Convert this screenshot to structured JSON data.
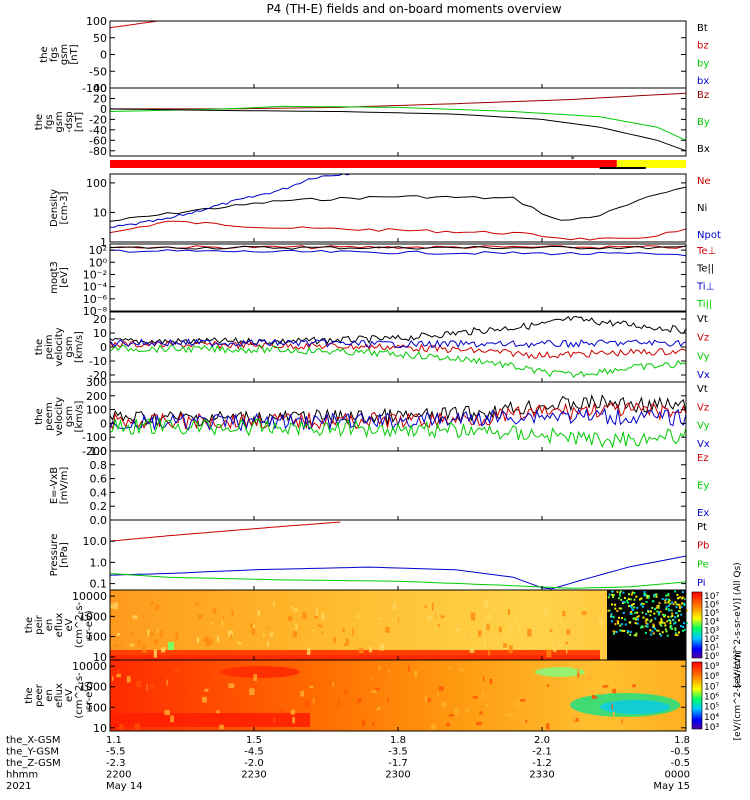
{
  "title": "P4 (TH-E) fields and on-board moments overview",
  "colors": {
    "black": "#000000",
    "red": "#cc0000",
    "green": "#00cc00",
    "blue": "#0000cc",
    "darkred": "#990000",
    "yellow": "#ffff00",
    "flag_red": "#ff0000"
  },
  "chart_data": [
    {
      "type": "line",
      "ylabel": [
        "the",
        "fgs",
        "gsm",
        "[nT]"
      ],
      "ylim": [
        -100,
        100
      ],
      "yscale": "linear",
      "yticks": [
        "100",
        "50",
        "0",
        "-50",
        "-100"
      ],
      "yticks_values": [
        100,
        50,
        0,
        -50,
        -100
      ],
      "legend": [
        {
          "label": "Bt",
          "color": "#000000"
        },
        {
          "label": "bz",
          "color": "#cc0000"
        },
        {
          "label": "by",
          "color": "#00cc00"
        },
        {
          "label": "bx",
          "color": "#0000cc"
        }
      ],
      "series": [
        {
          "color": "#cc0000",
          "x": [
            0,
            0.05,
            0.1
          ],
          "y": [
            80,
            92,
            104
          ]
        }
      ]
    },
    {
      "type": "line",
      "ylabel": [
        "the",
        "fgs",
        "gsm",
        "-dsp",
        "[nT]"
      ],
      "ylim": [
        -90,
        40
      ],
      "yscale": "linear",
      "yticks": [
        "40",
        "20",
        "0",
        "-20",
        "-40",
        "-60",
        "-80"
      ],
      "yticks_values": [
        40,
        20,
        0,
        -20,
        -40,
        -60,
        -80
      ],
      "legend": [
        {
          "label": "Bz",
          "color": "#990000"
        },
        {
          "label": "By",
          "color": "#00cc00"
        },
        {
          "label": "Bx",
          "color": "#000000"
        }
      ],
      "series": [
        {
          "color": "#990000",
          "x": [
            0,
            0.2,
            0.4,
            0.6,
            0.8,
            1.0
          ],
          "y": [
            0,
            0,
            3,
            10,
            18,
            30
          ]
        },
        {
          "color": "#00cc00",
          "x": [
            0,
            0.2,
            0.3,
            0.5,
            0.7,
            0.85,
            0.95,
            1.0
          ],
          "y": [
            -5,
            0,
            5,
            3,
            -5,
            -15,
            -35,
            -60
          ]
        },
        {
          "color": "#000000",
          "x": [
            0,
            0.2,
            0.4,
            0.6,
            0.75,
            0.85,
            0.95,
            1.0
          ],
          "y": [
            0,
            -3,
            -5,
            -10,
            -20,
            -35,
            -60,
            -80
          ]
        }
      ]
    },
    {
      "type": "flagbar",
      "segments": [
        {
          "from": 0,
          "to": 0.88,
          "color": "#ff0000"
        },
        {
          "from": 0.88,
          "to": 1.0,
          "color": "#ffff00"
        }
      ]
    },
    {
      "type": "line",
      "ylabel": [
        "Density",
        "[cm-3]"
      ],
      "ylim": [
        1,
        200
      ],
      "yscale": "log",
      "yticks": [
        "100",
        "10",
        "1"
      ],
      "yticks_values": [
        100,
        10,
        1
      ],
      "legend": [
        {
          "label": "Ne",
          "color": "#cc0000"
        },
        {
          "label": "Ni",
          "color": "#000000"
        },
        {
          "label": "Npot",
          "color": "#0000cc"
        }
      ],
      "series": [
        {
          "color": "#000000",
          "x": [
            0,
            0.15,
            0.3,
            0.5,
            0.7,
            0.78,
            0.85,
            0.95,
            1.0
          ],
          "y": [
            5,
            12,
            25,
            35,
            30,
            5,
            8,
            40,
            80
          ]
        },
        {
          "color": "#cc0000",
          "x": [
            0,
            0.1,
            0.3,
            0.5,
            0.7,
            0.8,
            0.9,
            1.0
          ],
          "y": [
            2,
            5,
            3,
            2.5,
            2,
            1.3,
            1.2,
            2.5
          ]
        },
        {
          "color": "#0000cc",
          "x": [
            0,
            0.1,
            0.2,
            0.3,
            0.35,
            0.4,
            0.45
          ],
          "y": [
            3,
            6,
            20,
            60,
            150,
            200,
            250
          ]
        }
      ]
    },
    {
      "type": "line",
      "ylabel": [
        "moqt3",
        "[eV]"
      ],
      "ylim": [
        1e-08,
        1000.0
      ],
      "yscale": "log",
      "yticks": [
        "10²",
        "10⁰",
        "10⁻²",
        "10⁻⁴",
        "10⁻⁶",
        "10⁻⁸"
      ],
      "yticks_values": [
        100,
        1,
        0.01,
        0.0001,
        1e-06,
        1e-08
      ],
      "legend": [
        {
          "label": "Te⊥",
          "color": "#cc0000"
        },
        {
          "label": "Te||",
          "color": "#000000"
        },
        {
          "label": "Ti⊥",
          "color": "#0000cc"
        },
        {
          "label": "Ti||",
          "color": "#00cc00"
        }
      ],
      "series": [
        {
          "color": "#cc0000",
          "x": [
            0,
            1.0
          ],
          "y": [
            300,
            300
          ]
        },
        {
          "color": "#000000",
          "x": [
            0,
            1.0
          ],
          "y": [
            250,
            250
          ]
        },
        {
          "color": "#0000cc",
          "x": [
            0,
            0.5,
            1.0
          ],
          "y": [
            80,
            40,
            20
          ]
        }
      ]
    },
    {
      "type": "line",
      "ylabel": [
        "the",
        "peim",
        "velocity",
        "gsm",
        "[km/s]"
      ],
      "ylim": [
        -25,
        25
      ],
      "yscale": "linear",
      "yticks": [
        "20",
        "10",
        "0",
        "-10",
        "-20"
      ],
      "yticks_values": [
        20,
        10,
        0,
        -10,
        -20
      ],
      "legend": [
        {
          "label": "Vt",
          "color": "#000000"
        },
        {
          "label": "Vz",
          "color": "#cc0000"
        },
        {
          "label": "Vy",
          "color": "#00cc00"
        },
        {
          "label": "Vx",
          "color": "#0000cc"
        }
      ],
      "series": [
        {
          "color": "#000000",
          "x": [
            0,
            0.3,
            0.5,
            0.65,
            0.75,
            0.8,
            0.9,
            1.0
          ],
          "y": [
            4,
            4,
            6,
            12,
            16,
            20,
            16,
            12
          ]
        },
        {
          "color": "#cc0000",
          "x": [
            0,
            0.3,
            0.5,
            0.65,
            0.75,
            0.9,
            1.0
          ],
          "y": [
            2,
            1,
            0,
            -3,
            -6,
            -4,
            -3
          ]
        },
        {
          "color": "#00cc00",
          "x": [
            0,
            0.3,
            0.5,
            0.65,
            0.75,
            0.8,
            0.9,
            1.0
          ],
          "y": [
            -1,
            -2,
            -5,
            -10,
            -18,
            -20,
            -15,
            -12
          ]
        },
        {
          "color": "#0000cc",
          "x": [
            0,
            0.3,
            0.5,
            0.65,
            0.75,
            0.9,
            1.0
          ],
          "y": [
            3,
            3,
            2,
            2,
            2,
            3,
            3
          ]
        }
      ]
    },
    {
      "type": "line",
      "ylabel": [
        "the",
        "peem",
        "velocity",
        "gsm",
        "[km/s]"
      ],
      "ylim": [
        -200,
        300
      ],
      "yscale": "linear",
      "yticks": [
        "300",
        "200",
        "100",
        "0",
        "-100",
        "-200"
      ],
      "yticks_values": [
        300,
        200,
        100,
        0,
        -100,
        -200
      ],
      "legend": [
        {
          "label": "Vt",
          "color": "#000000"
        },
        {
          "label": "Vz",
          "color": "#cc0000"
        },
        {
          "label": "Vy",
          "color": "#00cc00"
        },
        {
          "label": "Vx",
          "color": "#0000cc"
        }
      ],
      "series": [
        {
          "color": "#000000",
          "x": [
            0,
            0.3,
            0.55,
            0.65,
            0.75,
            0.85,
            1.0
          ],
          "y": [
            40,
            40,
            50,
            80,
            130,
            150,
            120
          ]
        },
        {
          "color": "#cc0000",
          "x": [
            0,
            0.3,
            0.55,
            0.65,
            0.75,
            0.85,
            1.0
          ],
          "y": [
            10,
            20,
            20,
            40,
            80,
            100,
            80
          ]
        },
        {
          "color": "#0000cc",
          "x": [
            0,
            0.3,
            0.55,
            0.65,
            0.75,
            0.85,
            1.0
          ],
          "y": [
            0,
            10,
            20,
            40,
            60,
            50,
            40
          ]
        },
        {
          "color": "#00cc00",
          "x": [
            0,
            0.3,
            0.55,
            0.65,
            0.75,
            0.85,
            1.0
          ],
          "y": [
            -20,
            -30,
            -40,
            -60,
            -80,
            -120,
            -90
          ]
        }
      ]
    },
    {
      "type": "line",
      "ylabel": [
        "E=-VxB",
        "[mV/m]"
      ],
      "ylim": [
        0,
        1
      ],
      "yscale": "linear",
      "yticks": [
        "1.0",
        "0.8",
        "0.6",
        "0.4",
        "0.2",
        "0.0"
      ],
      "yticks_values": [
        1.0,
        0.8,
        0.6,
        0.4,
        0.2,
        0.0
      ],
      "legend": [
        {
          "label": "Ez",
          "color": "#cc0000"
        },
        {
          "label": "Ey",
          "color": "#00cc00"
        },
        {
          "label": "Ex",
          "color": "#0000cc"
        }
      ],
      "series": []
    },
    {
      "type": "line",
      "ylabel": [
        "Pressure",
        "[nPa]"
      ],
      "ylim": [
        0.05,
        100
      ],
      "yscale": "log",
      "yticks": [
        "10.0",
        "1.0",
        "0.1"
      ],
      "yticks_values": [
        10,
        1,
        0.1
      ],
      "legend": [
        {
          "label": "Pt",
          "color": "#000000"
        },
        {
          "label": "Pb",
          "color": "#cc0000"
        },
        {
          "label": "Pe",
          "color": "#00cc00"
        },
        {
          "label": "Pi",
          "color": "#0000cc"
        }
      ],
      "series": [
        {
          "color": "#cc0000",
          "x": [
            0,
            0.1,
            0.2,
            0.3,
            0.4
          ],
          "y": [
            10,
            18,
            30,
            50,
            80
          ]
        },
        {
          "color": "#0000cc",
          "x": [
            0,
            0.1,
            0.25,
            0.45,
            0.6,
            0.7,
            0.76,
            0.82,
            0.9,
            1.0
          ],
          "y": [
            0.25,
            0.3,
            0.45,
            0.6,
            0.45,
            0.2,
            0.05,
            0.15,
            0.6,
            2
          ]
        },
        {
          "color": "#00cc00",
          "x": [
            0,
            0.1,
            0.3,
            0.5,
            0.7,
            0.8,
            0.9,
            1.0
          ],
          "y": [
            0.3,
            0.2,
            0.15,
            0.13,
            0.08,
            0.06,
            0.07,
            0.12
          ]
        }
      ]
    },
    {
      "type": "heatmap",
      "ylabel": [
        "the",
        "peir",
        "en",
        "eflux",
        "eV",
        "(cm^2-s-",
        "sr-eV)"
      ],
      "yscale": "log",
      "ylim": [
        7,
        20000
      ],
      "yticks": [
        "10000",
        "1000",
        "100",
        "10"
      ],
      "yticks_values": [
        10000,
        1000,
        100,
        10
      ],
      "colorbar": [
        "10⁷",
        "10⁶",
        "10⁵",
        "10⁴",
        "10³",
        "10²",
        "10¹",
        "10⁰"
      ],
      "colorbar_label": "[eV/(cm^2-s-sr-eV)] (All Qs)"
    },
    {
      "type": "heatmap",
      "ylabel": [
        "the",
        "peer",
        "en",
        "eflux",
        "eV",
        "(cm^2-s-",
        "sr-eV)"
      ],
      "yscale": "log",
      "ylim": [
        7,
        20000
      ],
      "yticks": [
        "10000",
        "1000",
        "100",
        "10"
      ],
      "yticks_values": [
        10000,
        1000,
        100,
        10
      ],
      "colorbar": [
        "10⁹",
        "10⁸",
        "10⁷",
        "10⁶",
        "10⁵",
        "10⁴",
        "10³"
      ],
      "colorbar_label": "[eV/(cm^2-s-sr-eV)]"
    }
  ],
  "xaxis": {
    "row_labels": [
      "the_X-GSM",
      "the_Y-GSM",
      "the_Z-GSM",
      "hhmm",
      "2021"
    ],
    "columns": [
      {
        "values": [
          "1.1",
          "-5.5",
          "-2.3",
          "2200",
          "May 14"
        ]
      },
      {
        "values": [
          "1.5",
          "-4.5",
          "-2.0",
          "2230",
          ""
        ]
      },
      {
        "values": [
          "1.8",
          "-3.5",
          "-1.7",
          "2300",
          ""
        ]
      },
      {
        "values": [
          "2.0",
          "-2.1",
          "-1.2",
          "2330",
          ""
        ]
      },
      {
        "values": [
          "1.8",
          "-0.5",
          "-0.5",
          "0000",
          "May 15"
        ]
      }
    ]
  }
}
